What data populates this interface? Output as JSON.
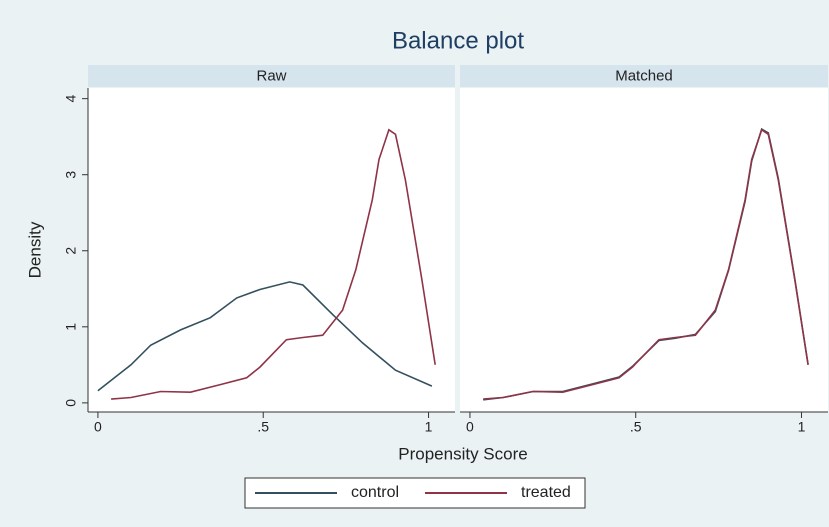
{
  "chart_data": {
    "type": "line",
    "title": "Balance plot",
    "xlabel": "Propensity Score",
    "ylabel": "Density",
    "xlim": [
      -0.03,
      1.08
    ],
    "ylim": [
      -0.12,
      4.14
    ],
    "xticks": [
      0,
      {
        "value": 0.5,
        "label": ".5"
      },
      1
    ],
    "yticks": [
      0,
      1,
      2,
      3,
      4
    ],
    "legend": [
      {
        "name": "control",
        "color": "#34505f"
      },
      {
        "name": "treated",
        "color": "#8e3446"
      }
    ],
    "panels": [
      {
        "title": "Raw",
        "series": [
          {
            "x": [
              0,
              0.1,
              0.16,
              0.25,
              0.34,
              0.42,
              0.49,
              0.58,
              0.62,
              0.71,
              0.8,
              0.9,
              1.01
            ],
            "values": [
              0.16,
              0.5,
              0.76,
              0.96,
              1.12,
              1.38,
              1.49,
              1.59,
              1.55,
              1.16,
              0.79,
              0.43,
              0.22
            ]
          },
          {
            "x": [
              0.04,
              0.1,
              0.19,
              0.28,
              0.37,
              0.45,
              0.49,
              0.57,
              0.62,
              0.68,
              0.74,
              0.78,
              0.83,
              0.85,
              0.88,
              0.9,
              0.93,
              0.98,
              1.02
            ],
            "values": [
              0.05,
              0.07,
              0.15,
              0.14,
              0.24,
              0.33,
              0.47,
              0.83,
              0.86,
              0.89,
              1.22,
              1.75,
              2.67,
              3.2,
              3.59,
              3.53,
              2.93,
              1.62,
              0.5
            ]
          }
        ]
      },
      {
        "title": "Matched",
        "series": [
          {
            "x": [
              0.04,
              0.1,
              0.19,
              0.28,
              0.37,
              0.45,
              0.49,
              0.57,
              0.62,
              0.68,
              0.74,
              0.78,
              0.83,
              0.85,
              0.88,
              0.9,
              0.93,
              0.98,
              1.02
            ],
            "values": [
              0.04,
              0.07,
              0.15,
              0.15,
              0.25,
              0.34,
              0.48,
              0.82,
              0.85,
              0.9,
              1.2,
              1.74,
              2.65,
              3.18,
              3.6,
              3.55,
              2.95,
              1.63,
              0.5
            ]
          },
          {
            "x": [
              0.04,
              0.1,
              0.19,
              0.28,
              0.37,
              0.45,
              0.49,
              0.57,
              0.62,
              0.68,
              0.74,
              0.78,
              0.83,
              0.85,
              0.88,
              0.9,
              0.93,
              0.98,
              1.02
            ],
            "values": [
              0.05,
              0.07,
              0.15,
              0.14,
              0.24,
              0.33,
              0.47,
              0.83,
              0.86,
              0.89,
              1.22,
              1.75,
              2.67,
              3.2,
              3.59,
              3.53,
              2.93,
              1.62,
              0.5
            ]
          }
        ]
      }
    ]
  }
}
